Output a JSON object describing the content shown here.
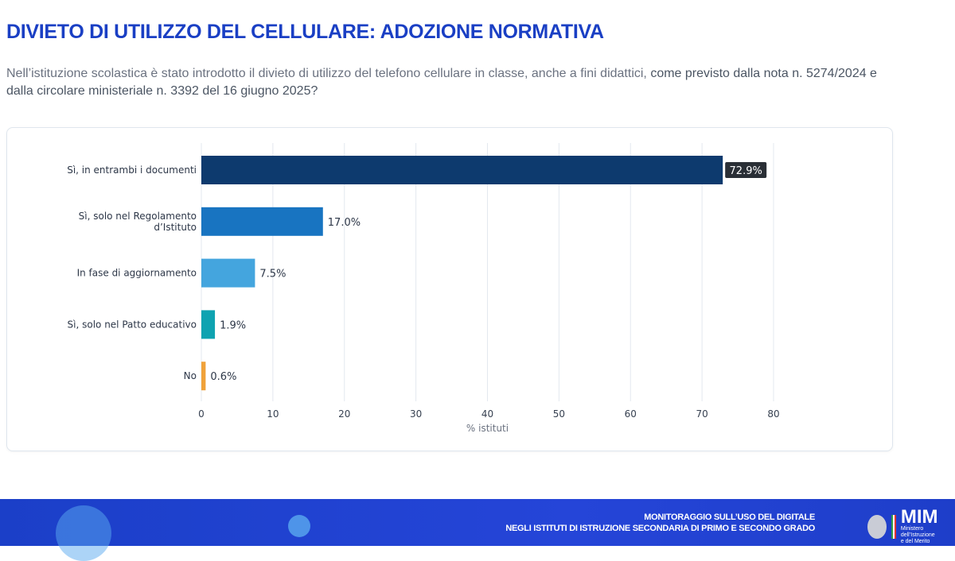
{
  "header": {
    "title": "DIVIETO DI UTILIZZO DEL CELLULARE: ADOZIONE NORMATIVA",
    "subtitle_part1": "Nell’istituzione scolastica è stato introdotto il divieto di utilizzo del telefono cellulare in classe, anche a fini didattici, ",
    "subtitle_part2": "come previsto dalla nota n. 5274/2024 e dalla circolare ministeriale n. 3392 del 16 giugno 2025?"
  },
  "chart_data": {
    "type": "bar",
    "orientation": "horizontal",
    "categories": [
      [
        "Sì, in entrambi i documenti"
      ],
      [
        "Sì, solo nel Regolamento",
        "d’Istituto"
      ],
      [
        "In fase di aggiornamento"
      ],
      [
        "Sì, solo nel Patto educativo"
      ],
      [
        "No"
      ]
    ],
    "values": [
      72.9,
      17.0,
      7.5,
      1.9,
      0.6
    ],
    "labels": [
      "72.9%",
      "17.0%",
      "7.5%",
      "1.9%",
      "0.6%"
    ],
    "colors": [
      "#0d3a6e",
      "#1874c1",
      "#44a5de",
      "#0fa3b1",
      "#f0a23a"
    ],
    "xlabel": "% istituti",
    "xlim": [
      0,
      80
    ],
    "xticks": [
      0,
      10,
      20,
      30,
      40,
      50,
      60,
      70,
      80
    ],
    "grid": true
  },
  "footer": {
    "line1": "MONITORAGGIO SULL’USO DEL DIGITALE",
    "line2": "NEGLI ISTITUTI DI ISTRUZIONE SECONDARIA DI PRIMO E SECONDO GRADO",
    "logo": "MIM",
    "logo_sub1": "Ministero dell’Istruzione",
    "logo_sub2": "e del Merito"
  }
}
